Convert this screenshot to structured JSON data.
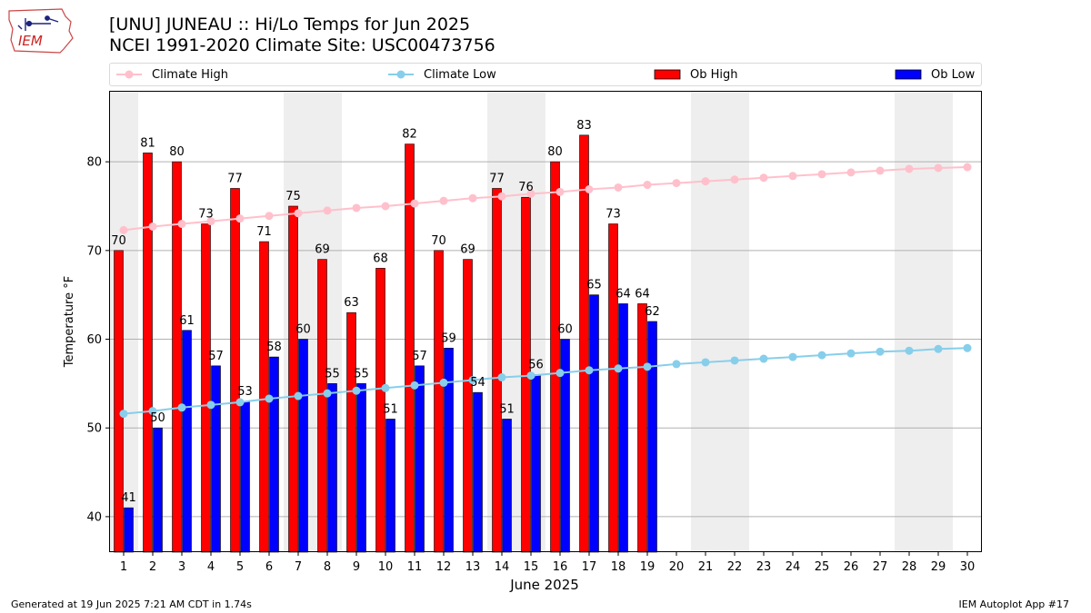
{
  "header": {
    "title_line1": "[UNU] JUNEAU :: Hi/Lo Temps for Jun 2025",
    "title_line2": "NCEI 1991-2020 Climate Site: USC00473756",
    "logo_text": "IEM"
  },
  "footer": {
    "generated": "Generated at 19 Jun 2025 7:21 AM CDT in 1.74s",
    "app": "IEM Autoplot App #17"
  },
  "colors": {
    "ob_high": "#ff0000",
    "ob_low": "#0000ff",
    "climate_high": "#ffc0cb",
    "climate_low": "#87ceeb",
    "weekend_shade": "#eeeeee",
    "grid": "#b0b0b0"
  },
  "chart_data": {
    "type": "bar",
    "title": "[UNU] JUNEAU :: Hi/Lo Temps for Jun 2025",
    "subtitle": "NCEI 1991-2020 Climate Site: USC00473756",
    "xlabel": "June 2025",
    "ylabel": "Temperature °F",
    "ylim": [
      36,
      88
    ],
    "yticks": [
      40,
      50,
      60,
      70,
      80
    ],
    "grid": "horizontal",
    "legend_position": "top",
    "days": [
      1,
      2,
      3,
      4,
      5,
      6,
      7,
      8,
      9,
      10,
      11,
      12,
      13,
      14,
      15,
      16,
      17,
      18,
      19,
      20,
      21,
      22,
      23,
      24,
      25,
      26,
      27,
      28,
      29,
      30
    ],
    "weekend_shaded_days": [
      [
        1
      ],
      [
        7,
        8
      ],
      [
        14,
        15
      ],
      [
        21,
        22
      ],
      [
        28,
        29
      ]
    ],
    "series": [
      {
        "name": "Climate High",
        "kind": "line",
        "color": "#ffc0cb",
        "values": [
          72.3,
          72.7,
          73.0,
          73.3,
          73.6,
          73.9,
          74.2,
          74.5,
          74.8,
          75.0,
          75.3,
          75.6,
          75.9,
          76.1,
          76.4,
          76.6,
          76.9,
          77.1,
          77.4,
          77.6,
          77.8,
          78.0,
          78.2,
          78.4,
          78.6,
          78.8,
          79.0,
          79.2,
          79.3,
          79.4
        ]
      },
      {
        "name": "Climate Low",
        "kind": "line",
        "color": "#87ceeb",
        "values": [
          51.6,
          51.9,
          52.3,
          52.6,
          52.9,
          53.3,
          53.6,
          53.9,
          54.2,
          54.5,
          54.8,
          55.1,
          55.4,
          55.7,
          55.9,
          56.2,
          56.5,
          56.7,
          56.9,
          57.2,
          57.4,
          57.6,
          57.8,
          58.0,
          58.2,
          58.4,
          58.6,
          58.7,
          58.9,
          59.0
        ]
      },
      {
        "name": "Ob High",
        "kind": "bar",
        "color": "#ff0000",
        "values": [
          70,
          81,
          80,
          73,
          77,
          71,
          75,
          69,
          63,
          68,
          82,
          70,
          69,
          77,
          76,
          80,
          83,
          73,
          64
        ]
      },
      {
        "name": "Ob Low",
        "kind": "bar",
        "color": "#0000ff",
        "values": [
          41,
          50,
          61,
          57,
          53,
          58,
          60,
          55,
          55,
          51,
          57,
          59,
          54,
          51,
          56,
          60,
          65,
          64,
          62
        ]
      }
    ]
  }
}
